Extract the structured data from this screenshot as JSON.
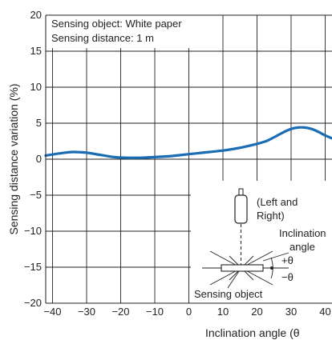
{
  "chart_data": {
    "type": "line",
    "xlabel": "Inclination angle (θ",
    "ylabel": "Sensing distance variation (%)",
    "x_ticks": [
      "−40",
      "−30",
      "−20",
      "−10",
      "0",
      "10",
      "20",
      "30",
      "40"
    ],
    "y_ticks": [
      "20",
      "15",
      "10",
      "5",
      "0",
      "−5",
      "−10",
      "−15",
      "−20"
    ],
    "xlim": [
      -42,
      42
    ],
    "ylim": [
      -20,
      20
    ],
    "grid": true,
    "conditions": [
      "Sensing object: White paper",
      "Sensing distance: 1 m"
    ],
    "series": [
      {
        "color": "#1a6db5",
        "x": [
          -42,
          -38,
          -34,
          -30,
          -26,
          -22,
          -18,
          -14,
          -10,
          -6,
          -2,
          2,
          6,
          10,
          14,
          18,
          22,
          24,
          26,
          28,
          30,
          32,
          34,
          36,
          38,
          40,
          42
        ],
        "y": [
          0.5,
          0.8,
          1.0,
          0.9,
          0.6,
          0.3,
          0.2,
          0.2,
          0.3,
          0.4,
          0.6,
          0.8,
          1.0,
          1.2,
          1.5,
          1.9,
          2.4,
          2.8,
          3.3,
          3.8,
          4.2,
          4.4,
          4.4,
          4.2,
          3.8,
          3.3,
          2.9
        ]
      }
    ],
    "diagram": {
      "direction_label_line1": "(Left and",
      "direction_label_line2": "Right)",
      "inclination_label_line1": "Inclination",
      "inclination_label_line2": "angle",
      "plus_theta": "+θ",
      "minus_theta": "−θ",
      "object_label": "Sensing object"
    }
  }
}
